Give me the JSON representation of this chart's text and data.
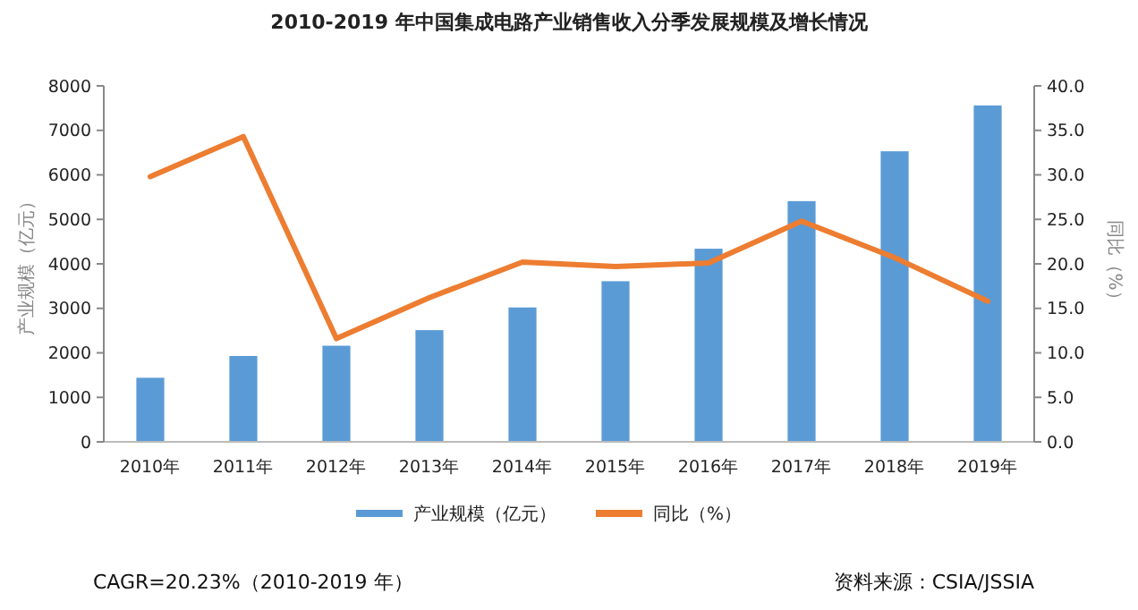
{
  "chart_data": {
    "type": "bar",
    "title": "2010-2019 年中国集成电路产业销售收入分季发展规模及增长情况",
    "ylabel": "产业规模（亿元）",
    "y2label": "同比（%）",
    "categories": [
      "2010年",
      "2011年",
      "2012年",
      "2013年",
      "2014年",
      "2015年",
      "2016年",
      "2017年",
      "2018年",
      "2019年"
    ],
    "series": [
      {
        "name": "产业规模（亿元）",
        "color": "#5b9bd5",
        "values": [
          1440,
          1930,
          2160,
          2510,
          3020,
          3610,
          4340,
          5410,
          6530,
          7560
        ]
      },
      {
        "name": "同比（%）",
        "type": "line",
        "axis": "y2",
        "color": "#ed7d31",
        "values": [
          29.8,
          34.3,
          11.6,
          16.2,
          20.2,
          19.7,
          20.1,
          24.8,
          20.7,
          15.8
        ]
      }
    ],
    "ylim": [
      0,
      8000
    ],
    "yticks": [
      0,
      1000,
      2000,
      3000,
      4000,
      5000,
      6000,
      7000,
      8000
    ],
    "y2lim": [
      0,
      40
    ],
    "y2ticks": [
      {
        "value": 0,
        "label": "0.0"
      },
      {
        "value": 5,
        "label": "5.0"
      },
      {
        "value": 10,
        "label": "10.0"
      },
      {
        "value": 15,
        "label": "15.0"
      },
      {
        "value": 20,
        "label": "20.0"
      },
      {
        "value": 25,
        "label": "25.0"
      },
      {
        "value": 30,
        "label": "30.0"
      },
      {
        "value": 35,
        "label": "35.0"
      },
      {
        "value": 40,
        "label": "40.0"
      }
    ],
    "legend": "bottom",
    "grid": false,
    "annotations": [
      "CAGR=20.23%（2010-2019 年）",
      "资料来源：CSIA/JSSIA"
    ]
  }
}
